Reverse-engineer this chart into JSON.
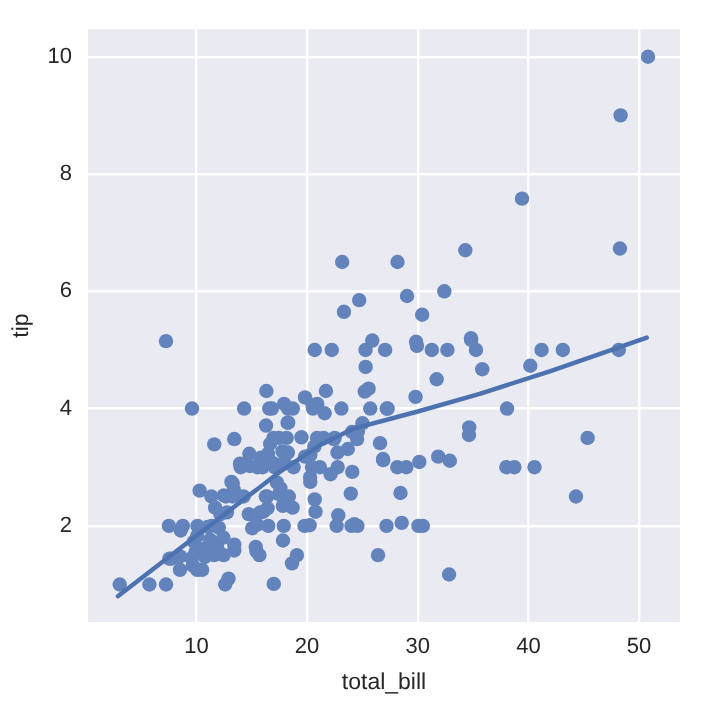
{
  "chart_data": {
    "type": "scatter",
    "xlabel": "total_bill",
    "ylabel": "tip",
    "xlim": [
      0.2,
      53.7
    ],
    "ylim": [
      0.36,
      10.47
    ],
    "xticks": [
      10,
      20,
      30,
      40,
      50
    ],
    "yticks": [
      2,
      4,
      6,
      8,
      10
    ],
    "grid": true,
    "legend": false,
    "series": [
      {
        "marker": "circle",
        "color": "#6283bb",
        "x": [
          16.99,
          23.68,
          24.59,
          25.29,
          8.77,
          26.88,
          15.04,
          14.78,
          35.26,
          15.42,
          14.83,
          21.58,
          16.29,
          16.97,
          20.65,
          17.92,
          20.29,
          15.77,
          39.42,
          19.82,
          17.81,
          21.7,
          9.55,
          18.35,
          20.69,
          17.78,
          24.06,
          16.93,
          18.69,
          31.27,
          16.04,
          17.46,
          13.94,
          9.68,
          30.4,
          22.23,
          32.4,
          28.55,
          10.29,
          34.81,
          9.94,
          25.56,
          19.49,
          38.01,
          26.41,
          11.24,
          48.27,
          20.29,
          11.02,
          18.29,
          17.59,
          3.07,
          20.23,
          12.02,
          17.07,
          26.86,
          25.28,
          14.73,
          10.51,
          17.92,
          27.2,
          22.76,
          16.66,
          10.07,
          32.68,
          34.83,
          18.28,
          24.71,
          21.16,
          28.97,
          22.49,
          5.75,
          16.32,
          22.75,
          40.17,
          27.28,
          12.46,
          11.35,
          44.3,
          22.42,
          20.92,
          15.36,
          20.49,
          25.21,
          18.24,
          14.31,
          14.0,
          7.25,
          38.07,
          23.95,
          25.71,
          29.93,
          12.43,
          24.08,
          11.69,
          13.42,
          14.26,
          12.48,
          29.8,
          8.52,
          11.38,
          22.82,
          19.08,
          20.27,
          18.26,
          8.51,
          13.16,
          17.47,
          34.3,
          41.19,
          27.05,
          16.43,
          18.64,
          11.87,
          9.78,
          7.51,
          17.26,
          24.55,
          19.77,
          29.85,
          48.17,
          25.0,
          13.39,
          16.49,
          21.5,
          12.66,
          24.52,
          20.76,
          31.71,
          10.59,
          50.81,
          15.81,
          7.25,
          31.85,
          16.82,
          32.9,
          17.89,
          9.6,
          34.63,
          34.65,
          23.33,
          45.35,
          23.17,
          40.55,
          20.69,
          20.9,
          30.46,
          18.15,
          23.1,
          15.69,
          19.81,
          28.44,
          15.48,
          16.58,
          7.56,
          43.11,
          18.71,
          16.4,
          20.53,
          16.47,
          26.59,
          38.73,
          24.27,
          12.76,
          30.06,
          25.89,
          48.33,
          13.27,
          28.17,
          12.9,
          28.15,
          11.59,
          7.74,
          30.14,
          12.16,
          13.42,
          8.58,
          15.98,
          13.42,
          16.27,
          10.09,
          20.45,
          13.28,
          22.12,
          24.01,
          11.61,
          10.77,
          15.53,
          10.07,
          12.6,
          32.83,
          35.83,
          29.03,
          27.18,
          22.67,
          17.82,
          18.78
        ],
        "values": [
          1.01,
          3.31,
          3.61,
          4.71,
          2.0,
          3.12,
          1.96,
          3.23,
          5.0,
          1.57,
          3.02,
          3.92,
          3.71,
          3.5,
          3.35,
          4.08,
          2.75,
          2.23,
          7.58,
          3.18,
          2.34,
          4.3,
          1.45,
          2.5,
          2.45,
          3.27,
          3.6,
          3.07,
          2.31,
          5.0,
          2.24,
          2.54,
          3.06,
          1.32,
          5.6,
          5.0,
          6.0,
          2.05,
          2.6,
          5.2,
          1.56,
          4.34,
          3.51,
          3.0,
          1.5,
          1.76,
          6.73,
          3.21,
          1.98,
          3.76,
          2.64,
          1.0,
          2.01,
          1.97,
          3.0,
          3.14,
          5.0,
          2.2,
          1.25,
          3.08,
          4.0,
          3.0,
          3.4,
          1.83,
          5.0,
          5.17,
          4.0,
          5.85,
          3.0,
          3.0,
          3.5,
          1.0,
          4.3,
          3.25,
          4.73,
          4.0,
          1.5,
          2.5,
          2.5,
          3.48,
          4.08,
          1.64,
          4.06,
          4.29,
          3.76,
          4.0,
          3.0,
          1.0,
          4.0,
          2.55,
          4.0,
          5.07,
          1.8,
          2.92,
          2.31,
          1.68,
          2.5,
          2.52,
          4.2,
          1.48,
          2.0,
          2.18,
          1.5,
          2.83,
          3.25,
          1.25,
          2.75,
          3.5,
          6.7,
          5.0,
          5.0,
          2.3,
          1.36,
          1.63,
          1.73,
          2.0,
          2.74,
          2.0,
          2.0,
          5.14,
          5.0,
          3.75,
          2.61,
          2.0,
          3.5,
          2.5,
          3.48,
          2.24,
          4.5,
          1.61,
          10.0,
          3.16,
          5.15,
          3.18,
          4.0,
          3.11,
          2.0,
          4.0,
          3.55,
          3.68,
          5.65,
          3.5,
          6.5,
          3.0,
          5.0,
          3.5,
          2.0,
          3.5,
          4.0,
          1.5,
          4.19,
          2.56,
          2.02,
          4.0,
          1.44,
          5.0,
          4.0,
          2.5,
          4.0,
          3.23,
          3.41,
          3.0,
          2.03,
          2.23,
          2.0,
          5.16,
          9.0,
          2.5,
          6.5,
          1.1,
          3.0,
          1.5,
          1.44,
          3.09,
          2.2,
          3.48,
          1.92,
          3.0,
          1.58,
          2.5,
          2.0,
          3.0,
          2.72,
          2.88,
          2.0,
          3.39,
          1.47,
          3.0,
          1.25,
          1.0,
          1.17,
          4.67,
          5.92,
          2.0,
          2.0,
          1.75,
          3.0
        ]
      },
      {
        "type": "line",
        "color": "#4c72b0",
        "x": [
          2.9,
          10,
          17.6,
          21.2,
          24.2,
          30,
          35.6,
          42,
          50.7
        ],
        "values": [
          0.8,
          1.83,
          2.93,
          3.38,
          3.66,
          3.95,
          4.25,
          4.64,
          5.21
        ]
      }
    ]
  }
}
